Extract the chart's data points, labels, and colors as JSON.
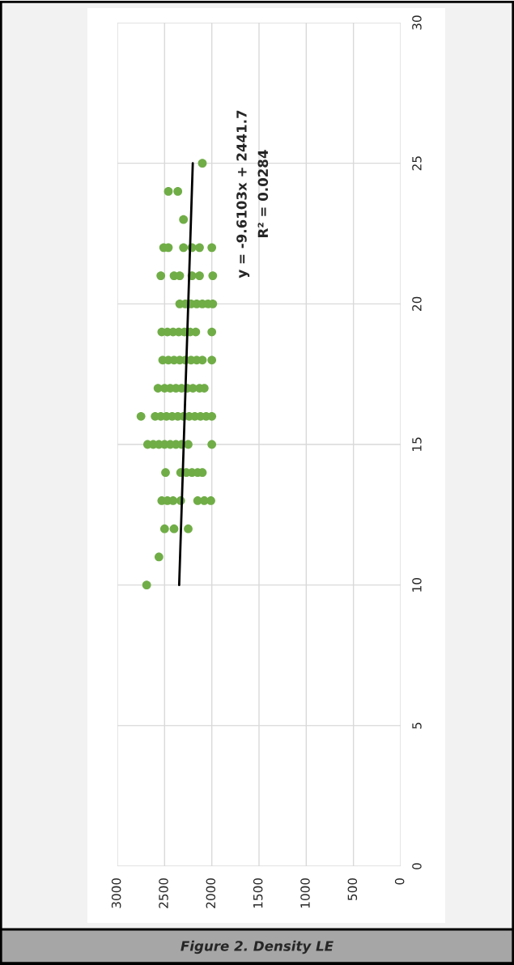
{
  "chart_data": {
    "type": "scatter",
    "title": "Figure 2. Density LE",
    "series": [
      {
        "color": "#70ad47",
        "marker": "circle",
        "x": [
          2100,
          2460,
          2360,
          2300,
          2510,
          2460,
          2300,
          2210,
          2130,
          2000,
          2540,
          2400,
          2340,
          2210,
          2130,
          1990,
          2340,
          2280,
          2220,
          2160,
          2100,
          2040,
          1990,
          2530,
          2470,
          2410,
          2350,
          2290,
          2230,
          2170,
          2000,
          2520,
          2460,
          2400,
          2340,
          2280,
          2220,
          2160,
          2100,
          2000,
          2570,
          2500,
          2440,
          2380,
          2320,
          2260,
          2200,
          2130,
          2080,
          2750,
          2600,
          2540,
          2480,
          2420,
          2360,
          2300,
          2240,
          2180,
          2120,
          2060,
          2000,
          2680,
          2620,
          2560,
          2500,
          2440,
          2380,
          2320,
          2250,
          2000,
          2490,
          2330,
          2270,
          2210,
          2150,
          2100,
          2530,
          2470,
          2410,
          2330,
          2150,
          2080,
          2010,
          2500,
          2400,
          2250,
          2560,
          2690
        ],
        "values": [
          25,
          24,
          24,
          23,
          22,
          22,
          22,
          22,
          22,
          22,
          21,
          21,
          21,
          21,
          21,
          21,
          20,
          20,
          20,
          20,
          20,
          20,
          20,
          19,
          19,
          19,
          19,
          19,
          19,
          19,
          19,
          18,
          18,
          18,
          18,
          18,
          18,
          18,
          18,
          18,
          17,
          17,
          17,
          17,
          17,
          17,
          17,
          17,
          17,
          16,
          16,
          16,
          16,
          16,
          16,
          16,
          16,
          16,
          16,
          16,
          16,
          15,
          15,
          15,
          15,
          15,
          15,
          15,
          15,
          15,
          14,
          14,
          14,
          14,
          14,
          14,
          13,
          13,
          13,
          13,
          13,
          13,
          13,
          12,
          12,
          12,
          11,
          10
        ]
      },
      {
        "type": "line",
        "color": "#000000",
        "x": [
          2345.6,
          2201.4
        ],
        "values": [
          10,
          25
        ]
      }
    ],
    "xlim": [
      3000,
      0
    ],
    "xticks": [
      3000,
      2500,
      2000,
      1500,
      1000,
      500,
      0
    ],
    "ylim": [
      0,
      30
    ],
    "yticks": [
      0,
      5,
      10,
      15,
      20,
      25,
      30
    ],
    "grid": true,
    "annotations": [
      "y = -9.6103x + 2441.7",
      "R² = 0.0284"
    ]
  }
}
